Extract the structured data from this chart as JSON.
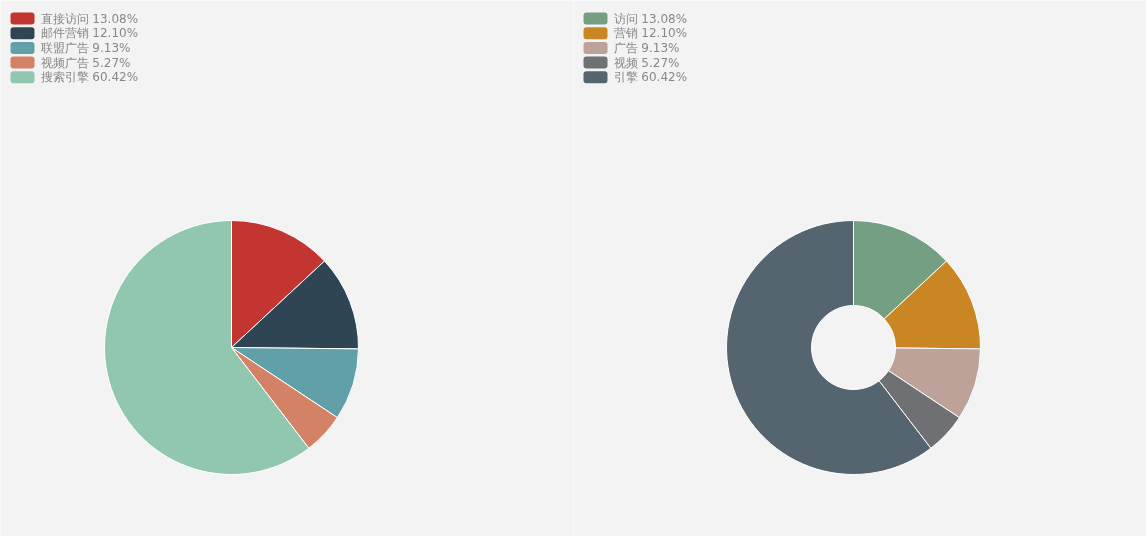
{
  "chart_data": [
    {
      "type": "pie",
      "categories": [
        "直接访问",
        "邮件营销",
        "联盟广告",
        "视频广告",
        "搜索引擎"
      ],
      "values": [
        13.08,
        12.1,
        9.13,
        5.27,
        60.42
      ],
      "value_labels": [
        "13.08%",
        "12.10%",
        "9.13%",
        "5.27%",
        "60.42%"
      ],
      "colors": [
        "#c23531",
        "#2f4554",
        "#61a0a8",
        "#d48265",
        "#91c7ae"
      ],
      "legend": "top left"
    },
    {
      "type": "donut",
      "categories": [
        "访问",
        "营销",
        "广告",
        "视频",
        "引擎"
      ],
      "values": [
        13.08,
        12.1,
        9.13,
        5.27,
        60.42
      ],
      "value_labels": [
        "13.08%",
        "12.10%",
        "9.13%",
        "5.27%",
        "60.42%"
      ],
      "colors": [
        "#749f83",
        "#ca8622",
        "#bda29a",
        "#6e7074",
        "#546570"
      ],
      "legend": "top left"
    }
  ]
}
